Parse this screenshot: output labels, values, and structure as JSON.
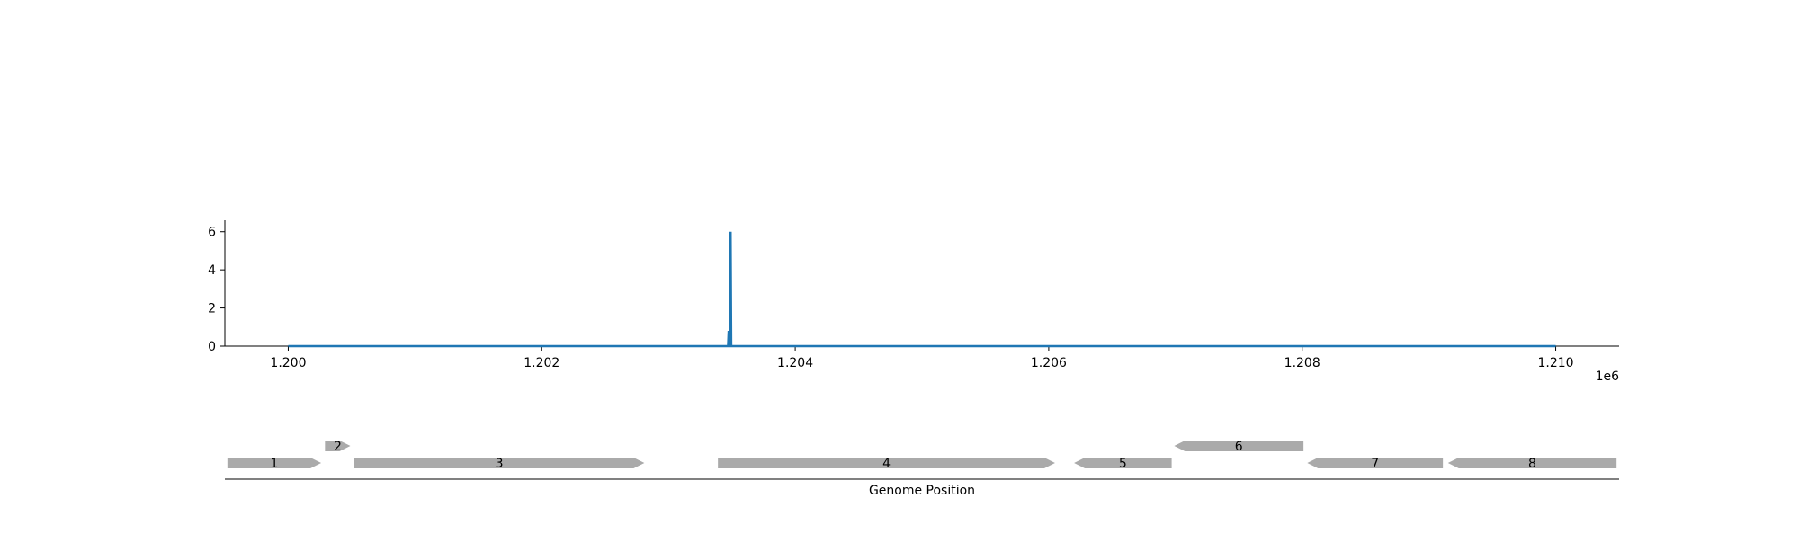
{
  "chart_data": [
    {
      "type": "line",
      "title": "",
      "xlabel": "",
      "ylabel": "",
      "x_offset_label": "1e6",
      "xlim": [
        1199500,
        1210500
      ],
      "ylim": [
        0,
        6.6
      ],
      "x_ticks": [
        1200000,
        1202000,
        1204000,
        1206000,
        1208000,
        1210000
      ],
      "x_tick_labels": [
        "1.200",
        "1.202",
        "1.204",
        "1.206",
        "1.208",
        "1.210"
      ],
      "y_ticks": [
        0,
        2,
        4,
        6
      ],
      "y_tick_labels": [
        "0",
        "2",
        "4",
        "6"
      ],
      "grid": false,
      "series": [
        {
          "color": "#1f77b4",
          "x": [
            1200000,
            1203470,
            1203475,
            1203480,
            1203485,
            1203490,
            1203495,
            1203500,
            1203505,
            1210000
          ],
          "y": [
            0,
            0,
            0.8,
            0,
            0,
            6.0,
            0,
            0,
            0,
            0
          ]
        }
      ]
    },
    {
      "type": "gene_track",
      "xlabel": "Genome Position",
      "xlim": [
        1199500,
        1210500
      ],
      "color": "#aaaaaa",
      "features": [
        {
          "label": "1",
          "start": 1199520,
          "end": 1200260,
          "strand": 1,
          "level": 0
        },
        {
          "label": "2",
          "start": 1200290,
          "end": 1200490,
          "strand": 1,
          "level": 1
        },
        {
          "label": "3",
          "start": 1200520,
          "end": 1202810,
          "strand": 1,
          "level": 0
        },
        {
          "label": "4",
          "start": 1203390,
          "end": 1206050,
          "strand": 1,
          "level": 0
        },
        {
          "label": "5",
          "start": 1206200,
          "end": 1206970,
          "strand": -1,
          "level": 0
        },
        {
          "label": "6",
          "start": 1206990,
          "end": 1208010,
          "strand": -1,
          "level": 1
        },
        {
          "label": "7",
          "start": 1208040,
          "end": 1209110,
          "strand": -1,
          "level": 0
        },
        {
          "label": "8",
          "start": 1209150,
          "end": 1210480,
          "strand": -1,
          "level": 0
        }
      ]
    }
  ]
}
